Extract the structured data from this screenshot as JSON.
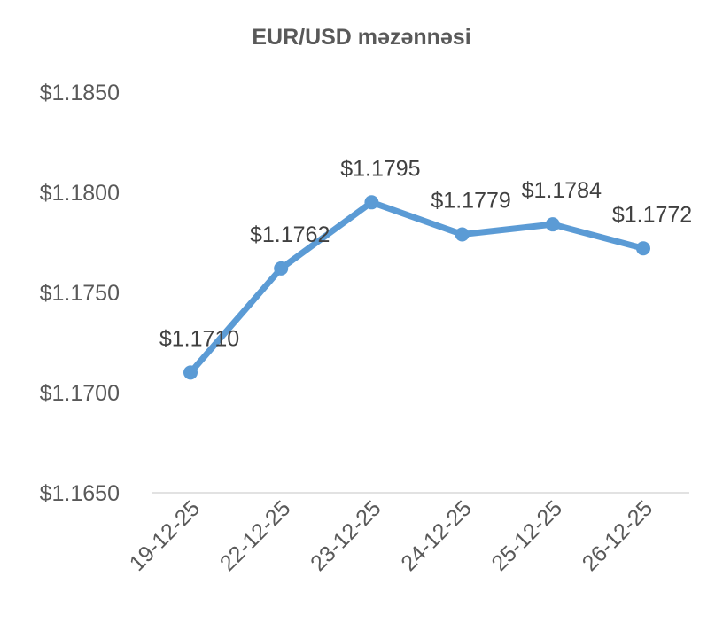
{
  "chart_data": {
    "type": "line",
    "title": "EUR/USD məzənnəsi",
    "xlabel": "",
    "ylabel": "",
    "categories": [
      "19-12-25",
      "22-12-25",
      "23-12-25",
      "24-12-25",
      "25-12-25",
      "26-12-25"
    ],
    "values": [
      1.171,
      1.1762,
      1.1795,
      1.1779,
      1.1784,
      1.1772
    ],
    "data_labels": [
      "$1.1710",
      "$1.1762",
      "$1.1795",
      "$1.1779",
      "$1.1784",
      "$1.1772"
    ],
    "ylim": [
      1.165,
      1.185
    ],
    "yticks": [
      1.165,
      1.17,
      1.175,
      1.18,
      1.185
    ],
    "ytick_labels": [
      "$1.1650",
      "$1.1700",
      "$1.1750",
      "$1.1800",
      "$1.1850"
    ],
    "grid": false,
    "legend": "none",
    "line_color": "#5B9BD5"
  }
}
